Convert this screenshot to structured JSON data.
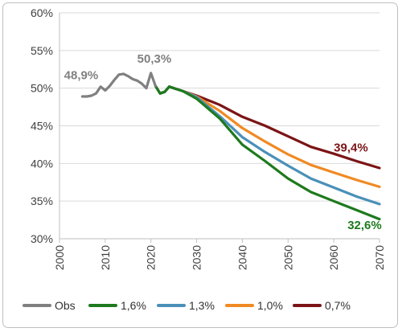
{
  "chart_data": {
    "type": "line",
    "xlabel": "",
    "ylabel": "",
    "xlim": [
      2000,
      2070
    ],
    "ylim": [
      30,
      60
    ],
    "x_ticks": [
      "2000",
      "2010",
      "2020",
      "2030",
      "2040",
      "2050",
      "2060",
      "2070"
    ],
    "y_ticks": [
      "30%",
      "35%",
      "40%",
      "45%",
      "50%",
      "55%",
      "60%"
    ],
    "grid": "horizontal",
    "legend_position": "bottom",
    "series": [
      {
        "name": "Obs",
        "color": "#808080",
        "points": [
          [
            2005,
            48.9
          ],
          [
            2006,
            48.9
          ],
          [
            2007,
            49.0
          ],
          [
            2008,
            49.3
          ],
          [
            2009,
            50.2
          ],
          [
            2010,
            49.7
          ],
          [
            2011,
            50.3
          ],
          [
            2012,
            51.1
          ],
          [
            2013,
            51.8
          ],
          [
            2014,
            51.9
          ],
          [
            2015,
            51.6
          ],
          [
            2016,
            51.2
          ],
          [
            2017,
            51.0
          ],
          [
            2018,
            50.6
          ],
          [
            2019,
            50.0
          ],
          [
            2020,
            52.0
          ],
          [
            2021,
            50.3
          ]
        ]
      },
      {
        "name": "1,6%",
        "color": "#1e7a1e",
        "points": [
          [
            2021,
            50.3
          ],
          [
            2022,
            49.3
          ],
          [
            2023,
            49.5
          ],
          [
            2024,
            50.2
          ],
          [
            2025,
            50.0
          ],
          [
            2026,
            49.8
          ],
          [
            2027,
            49.6
          ],
          [
            2030,
            48.6
          ],
          [
            2035,
            46.0
          ],
          [
            2040,
            42.5
          ],
          [
            2045,
            40.3
          ],
          [
            2050,
            38.0
          ],
          [
            2055,
            36.2
          ],
          [
            2060,
            35.0
          ],
          [
            2065,
            33.8
          ],
          [
            2070,
            32.6
          ]
        ]
      },
      {
        "name": "1,3%",
        "color": "#4a90b8",
        "points": [
          [
            2021,
            50.3
          ],
          [
            2022,
            49.3
          ],
          [
            2023,
            49.5
          ],
          [
            2024,
            50.2
          ],
          [
            2025,
            50.0
          ],
          [
            2026,
            49.8
          ],
          [
            2027,
            49.6
          ],
          [
            2030,
            48.8
          ],
          [
            2035,
            46.3
          ],
          [
            2040,
            43.5
          ],
          [
            2045,
            41.5
          ],
          [
            2050,
            39.7
          ],
          [
            2055,
            38.0
          ],
          [
            2060,
            36.8
          ],
          [
            2065,
            35.6
          ],
          [
            2070,
            34.6
          ]
        ]
      },
      {
        "name": "1,0%",
        "color": "#f08a24",
        "points": [
          [
            2021,
            50.3
          ],
          [
            2022,
            49.3
          ],
          [
            2023,
            49.5
          ],
          [
            2024,
            50.2
          ],
          [
            2025,
            50.0
          ],
          [
            2026,
            49.8
          ],
          [
            2027,
            49.6
          ],
          [
            2030,
            48.9
          ],
          [
            2035,
            47.0
          ],
          [
            2040,
            44.7
          ],
          [
            2045,
            42.9
          ],
          [
            2050,
            41.2
          ],
          [
            2055,
            39.8
          ],
          [
            2060,
            38.8
          ],
          [
            2065,
            37.8
          ],
          [
            2070,
            36.9
          ]
        ]
      },
      {
        "name": "0,7%",
        "color": "#7b1416",
        "points": [
          [
            2021,
            50.3
          ],
          [
            2022,
            49.3
          ],
          [
            2023,
            49.5
          ],
          [
            2024,
            50.2
          ],
          [
            2025,
            50.0
          ],
          [
            2026,
            49.8
          ],
          [
            2027,
            49.6
          ],
          [
            2030,
            49.0
          ],
          [
            2035,
            47.8
          ],
          [
            2040,
            46.2
          ],
          [
            2045,
            45.0
          ],
          [
            2050,
            43.6
          ],
          [
            2055,
            42.2
          ],
          [
            2060,
            41.3
          ],
          [
            2065,
            40.3
          ],
          [
            2070,
            39.4
          ]
        ]
      }
    ],
    "annotations": [
      {
        "text": "48,9%",
        "x": 2001,
        "y": 51.2,
        "color": "#808080"
      },
      {
        "text": "50,3%",
        "x": 2017,
        "y": 53.4,
        "color": "#808080"
      },
      {
        "text": "39,4%",
        "x": 2060,
        "y": 41.6,
        "color": "#7b1416"
      },
      {
        "text": "32,6%",
        "x": 2063,
        "y": 31.3,
        "color": "#1e7a1e"
      }
    ]
  }
}
